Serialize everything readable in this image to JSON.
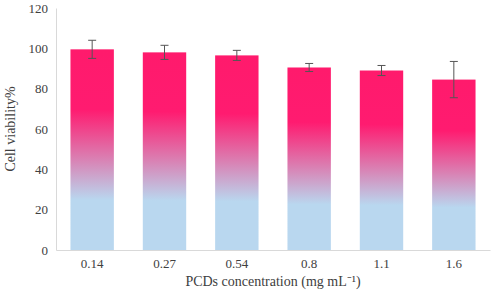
{
  "chart_data": {
    "type": "bar",
    "x_label": "PCDs concentration (mg mL⁻¹)",
    "y_label": "Cell viability%",
    "categories": [
      "0.14",
      "0.27",
      "0.54",
      "0.8",
      "1.1",
      "1.6"
    ],
    "values": [
      99.5,
      98,
      96.5,
      90.5,
      89,
      84.5
    ],
    "errors": [
      4.5,
      3.5,
      2.5,
      2,
      2.5,
      9
    ],
    "color": "#ff1a6c",
    "ylim": [
      0,
      120
    ],
    "yticks": [
      0,
      20,
      40,
      60,
      80,
      100,
      120
    ],
    "grid": false
  }
}
